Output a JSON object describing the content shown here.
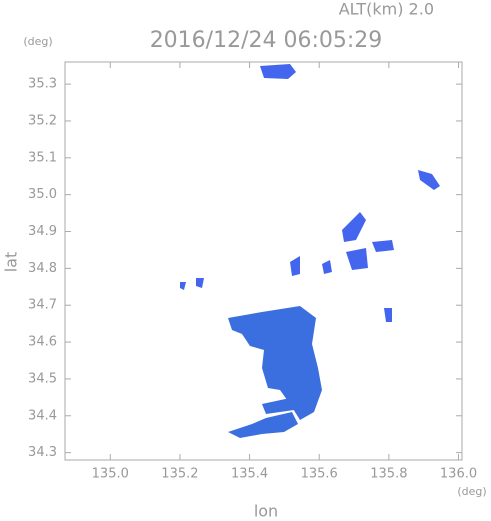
{
  "chart_data": {
    "type": "radar-map",
    "title": "2016/12/24 06:05:29",
    "subtitle": "ALT(km) 2.0",
    "x_label": "lon",
    "y_label": "lat",
    "x_unit": "(deg)",
    "y_unit": "(deg)",
    "xlim": [
      134.87,
      136.01
    ],
    "ylim": [
      34.28,
      35.36
    ],
    "xticks": [
      {
        "value": 135,
        "label": "135.0"
      },
      135.2,
      135.4,
      135.6,
      135.8,
      {
        "value": 136,
        "label": "136.0"
      }
    ],
    "yticks": [
      34.3,
      34.4,
      34.5,
      34.6,
      34.7,
      34.8,
      34.9,
      {
        "value": 35,
        "label": "35.0"
      },
      35.1,
      35.2,
      35.3
    ]
  }
}
